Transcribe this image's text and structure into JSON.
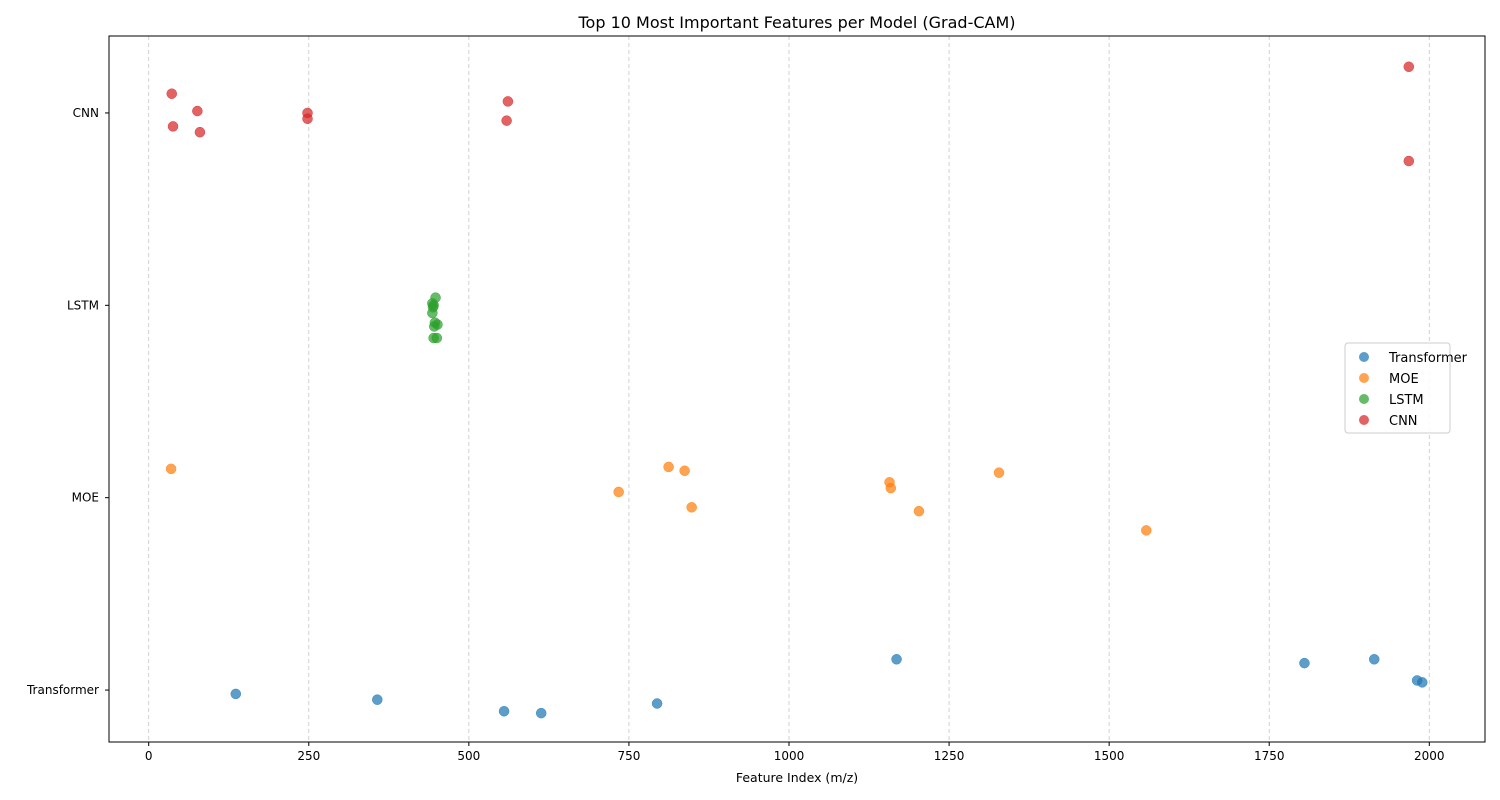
{
  "chart_data": {
    "type": "scatter",
    "title": "Top 10 Most Important Features per Model (Grad-CAM)",
    "xlabel": "Feature Index (m/z)",
    "ylabel": "",
    "xlim": [
      -62,
      2087
    ],
    "x_ticks": [
      0,
      250,
      500,
      750,
      1000,
      1250,
      1500,
      1750,
      2000
    ],
    "x_tick_labels": [
      "0",
      "250",
      "500",
      "750",
      "1000",
      "1250",
      "1500",
      "1750",
      "2000"
    ],
    "categories": [
      "Transformer",
      "MOE",
      "LSTM",
      "CNN"
    ],
    "ylim": [
      -0.27,
      3.4
    ],
    "grid": "x-dashed",
    "legend_position": "right",
    "series": [
      {
        "name": "Transformer",
        "color": "#1f77b4",
        "points": [
          {
            "x": 136,
            "y": -0.02
          },
          {
            "x": 357,
            "y": -0.05
          },
          {
            "x": 555,
            "y": -0.11
          },
          {
            "x": 613,
            "y": -0.12
          },
          {
            "x": 794,
            "y": -0.07
          },
          {
            "x": 1168,
            "y": 0.16
          },
          {
            "x": 1805,
            "y": 0.14
          },
          {
            "x": 1914,
            "y": 0.16
          },
          {
            "x": 1981,
            "y": 0.05
          },
          {
            "x": 1989,
            "y": 0.04
          }
        ]
      },
      {
        "name": "MOE",
        "color": "#ff7f0e",
        "points": [
          {
            "x": 35,
            "y": 1.15
          },
          {
            "x": 734,
            "y": 1.03
          },
          {
            "x": 812,
            "y": 1.16
          },
          {
            "x": 837,
            "y": 1.14
          },
          {
            "x": 848,
            "y": 0.95
          },
          {
            "x": 1157,
            "y": 1.08
          },
          {
            "x": 1159,
            "y": 1.05
          },
          {
            "x": 1203,
            "y": 0.93
          },
          {
            "x": 1328,
            "y": 1.13
          },
          {
            "x": 1558,
            "y": 0.83
          }
        ]
      },
      {
        "name": "LSTM",
        "color": "#2ca02c",
        "points": [
          {
            "x": 448,
            "y": 2.04
          },
          {
            "x": 443,
            "y": 2.01
          },
          {
            "x": 445,
            "y": 2.0
          },
          {
            "x": 444,
            "y": 1.99
          },
          {
            "x": 443,
            "y": 1.96
          },
          {
            "x": 447,
            "y": 1.91
          },
          {
            "x": 451,
            "y": 1.9
          },
          {
            "x": 446,
            "y": 1.89
          },
          {
            "x": 445,
            "y": 1.83
          },
          {
            "x": 450,
            "y": 1.83
          }
        ]
      },
      {
        "name": "CNN",
        "color": "#d62728",
        "points": [
          {
            "x": 36,
            "y": 3.1
          },
          {
            "x": 38,
            "y": 2.93
          },
          {
            "x": 76,
            "y": 3.01
          },
          {
            "x": 80,
            "y": 2.9
          },
          {
            "x": 248,
            "y": 3.0
          },
          {
            "x": 248,
            "y": 2.97
          },
          {
            "x": 561,
            "y": 3.06
          },
          {
            "x": 559,
            "y": 2.96
          },
          {
            "x": 1968,
            "y": 3.24
          },
          {
            "x": 1968,
            "y": 2.75
          }
        ]
      }
    ]
  }
}
